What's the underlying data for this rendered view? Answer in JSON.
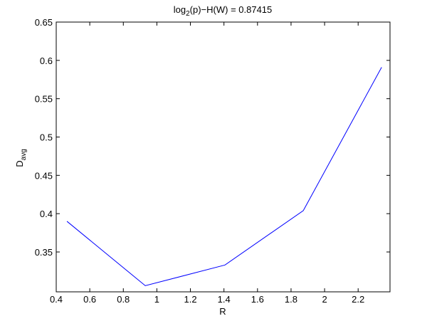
{
  "chart_data": {
    "type": "line",
    "title": [
      "log",
      "2",
      "(p)−H(W) = 0.87415"
    ],
    "x_label": "R",
    "y_label": [
      "D",
      "avg"
    ],
    "x": [
      0.464,
      0.931,
      1.406,
      1.873,
      2.34
    ],
    "series": [
      {
        "color": "#0000ff",
        "values": [
          0.39,
          0.306,
          0.333,
          0.404,
          0.591
        ]
      }
    ],
    "xlim": [
      0.4,
      2.39
    ],
    "ylim": [
      0.298,
      0.65
    ],
    "xticks": [
      0.4,
      0.6,
      0.8,
      1,
      1.2,
      1.4,
      1.6,
      1.8,
      2,
      2.2
    ],
    "yticks": [
      0.35,
      0.4,
      0.45,
      0.5,
      0.55,
      0.6,
      0.65
    ],
    "grid": false
  }
}
